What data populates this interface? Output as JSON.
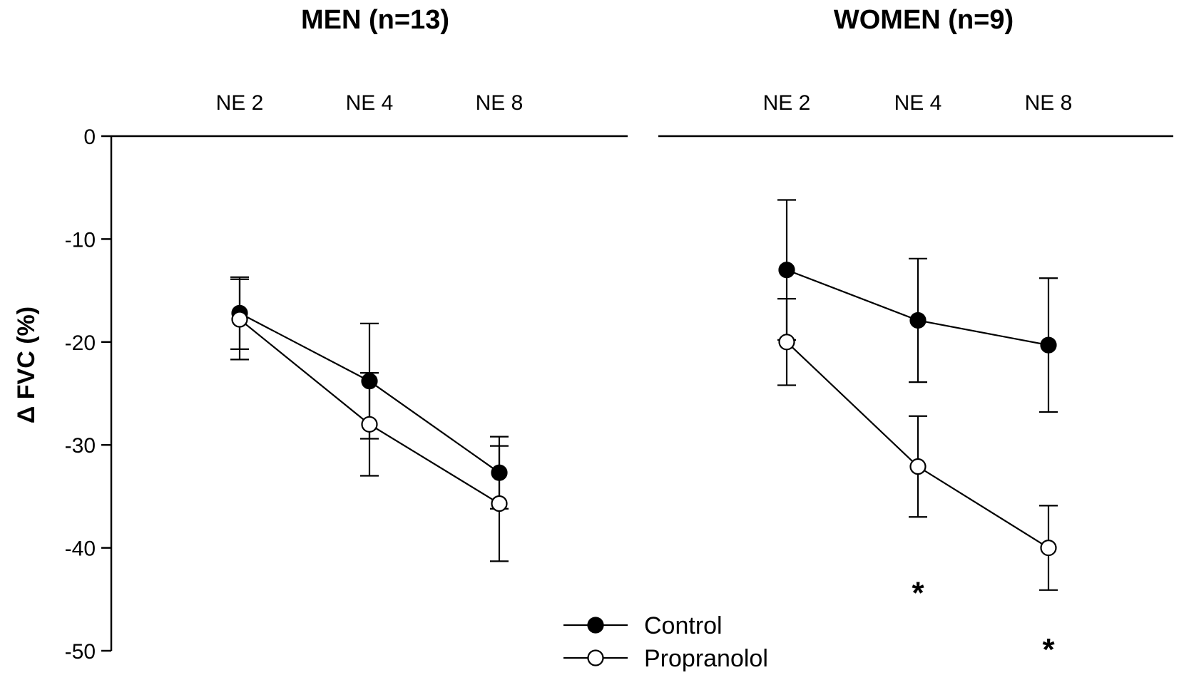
{
  "chart_data": {
    "type": "line",
    "ylabel": "Δ FVC (%)",
    "ylim": [
      -50,
      0
    ],
    "yticks": [
      0,
      -10,
      -20,
      -30,
      -40,
      -50
    ],
    "legend": {
      "placement": "bottom-center",
      "entries": [
        {
          "label": "Control",
          "marker": "filled-circle",
          "color": "#000000"
        },
        {
          "label": "Propranolol",
          "marker": "open-circle",
          "color": "#000000"
        }
      ]
    },
    "panels": [
      {
        "title": "MEN (n=13)",
        "categories": [
          "NE 2",
          "NE 4",
          "NE 8"
        ],
        "series": [
          {
            "name": "Control",
            "values": [
              -17.2,
              -23.8,
              -32.7
            ],
            "errors": [
              3.5,
              5.6,
              3.5
            ]
          },
          {
            "name": "Propranolol",
            "values": [
              -17.8,
              -28.0,
              -35.7
            ],
            "errors": [
              3.9,
              5.0,
              5.6
            ]
          }
        ],
        "annotations": []
      },
      {
        "title": "WOMEN (n=9)",
        "categories": [
          "NE 2",
          "NE 4",
          "NE 8"
        ],
        "series": [
          {
            "name": "Control",
            "values": [
              -13.0,
              -17.9,
              -20.3
            ],
            "errors": [
              6.8,
              6.0,
              6.5
            ]
          },
          {
            "name": "Propranolol",
            "values": [
              -20.0,
              -32.1,
              -40.0
            ],
            "errors": [
              4.2,
              4.9,
              4.1
            ]
          }
        ],
        "annotations": [
          {
            "category": "NE 4",
            "text": "*",
            "y": -44.0
          },
          {
            "category": "NE 8",
            "text": "*",
            "y": -49.5
          }
        ]
      }
    ]
  }
}
